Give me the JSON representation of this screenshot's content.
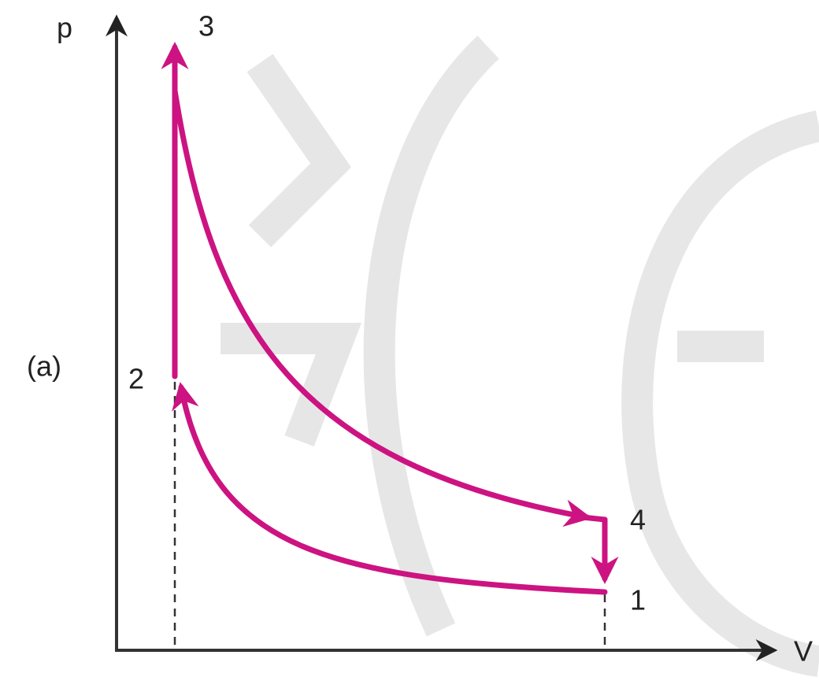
{
  "axes": {
    "y_label": "p",
    "x_label": "V"
  },
  "panel_label": "(a)",
  "points": [
    "1",
    "2",
    "3",
    "4"
  ]
}
